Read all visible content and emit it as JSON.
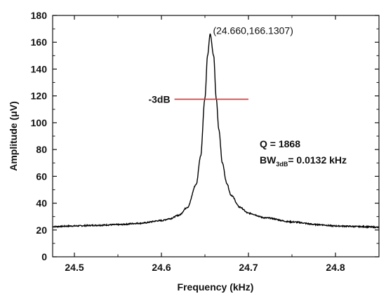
{
  "chart_data": {
    "type": "line",
    "xlabel": "Frequency (kHz)",
    "ylabel": "Amplitude (μV)",
    "xlim": [
      24.475,
      24.85
    ],
    "ylim": [
      0,
      180
    ],
    "x_ticks": [
      "24.5",
      "24.6",
      "24.7",
      "24.8"
    ],
    "x_tick_values": [
      24.5,
      24.6,
      24.7,
      24.8
    ],
    "y_ticks": [
      "0",
      "20",
      "40",
      "60",
      "80",
      "100",
      "120",
      "140",
      "160",
      "180"
    ],
    "y_tick_values": [
      0,
      20,
      40,
      60,
      80,
      100,
      120,
      140,
      160,
      180
    ],
    "grid": false,
    "series": [
      {
        "color": "#000000",
        "x": [
          24.475,
          24.5,
          24.525,
          24.55,
          24.575,
          24.6,
          24.61,
          24.62,
          24.63,
          24.64,
          24.645,
          24.65,
          24.653,
          24.656,
          24.66,
          24.663,
          24.666,
          24.67,
          24.675,
          24.68,
          24.69,
          24.7,
          24.72,
          24.75,
          24.78,
          24.8,
          24.83,
          24.85
        ],
        "y": [
          22.5,
          23,
          23.5,
          24,
          25,
          27,
          28.5,
          31,
          37,
          54,
          75,
          118,
          150,
          166.13,
          150,
          118,
          95,
          70,
          55,
          46,
          37,
          32.5,
          29,
          26,
          24,
          23,
          22.5,
          22
        ]
      }
    ],
    "peak": {
      "x": 24.656,
      "y": 166.13,
      "label": "(24.660,166.1307)"
    },
    "minus3db_line": {
      "y": 117.5,
      "x_start": 24.615,
      "x_end": 24.7,
      "label": "-3dB",
      "color": "#e03030"
    },
    "annotations": {
      "q_text": "Q = 1868",
      "bw_prefix": "BW",
      "bw_sub": "3dB",
      "bw_suffix": "= 0.0132 kHz"
    }
  }
}
